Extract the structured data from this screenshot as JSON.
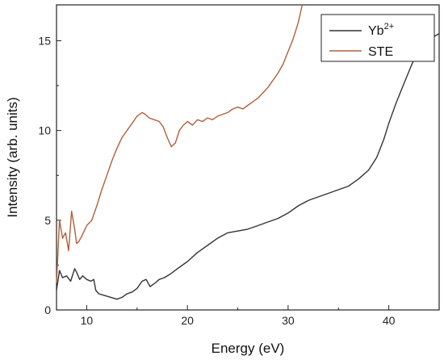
{
  "chart_data": {
    "type": "line",
    "xlabel": "Energy (eV)",
    "ylabel": "Intensity (arb. units)",
    "xlim": [
      7,
      45
    ],
    "ylim": [
      0,
      17
    ],
    "xticks": [
      10,
      20,
      30,
      40
    ],
    "yticks": [
      0,
      5,
      10,
      15
    ],
    "grid": false,
    "legend_position": "top-right",
    "series": [
      {
        "name": "Yb2+",
        "legend_base": "Yb",
        "legend_sup": "2+",
        "color": "#333333",
        "x": [
          7.0,
          7.3,
          7.6,
          8.0,
          8.4,
          8.8,
          9.0,
          9.3,
          9.6,
          10.0,
          10.4,
          10.7,
          10.9,
          11.2,
          11.8,
          12.4,
          13.0,
          13.5,
          14.0,
          14.5,
          15.0,
          15.5,
          15.9,
          16.3,
          16.8,
          17.2,
          17.7,
          18.3,
          19.0,
          20.0,
          21.0,
          22.0,
          23.0,
          24.0,
          25.0,
          26.0,
          27.0,
          28.0,
          29.0,
          30.0,
          31.0,
          32.0,
          33.0,
          34.0,
          35.0,
          36.0,
          37.0,
          38.0,
          38.8,
          39.5,
          40.0,
          40.7,
          41.5,
          42.3,
          43.0,
          43.7,
          44.4,
          45.0
        ],
        "y": [
          1.1,
          2.2,
          1.8,
          1.9,
          1.6,
          2.3,
          2.1,
          1.7,
          1.9,
          1.7,
          1.6,
          1.7,
          1.1,
          0.9,
          0.8,
          0.7,
          0.6,
          0.7,
          0.9,
          1.0,
          1.2,
          1.6,
          1.7,
          1.3,
          1.5,
          1.7,
          1.8,
          2.0,
          2.3,
          2.7,
          3.2,
          3.6,
          4.0,
          4.3,
          4.4,
          4.5,
          4.7,
          4.9,
          5.1,
          5.4,
          5.8,
          6.1,
          6.3,
          6.5,
          6.7,
          6.9,
          7.3,
          7.8,
          8.5,
          9.5,
          10.4,
          11.5,
          12.6,
          13.7,
          14.5,
          14.9,
          15.2,
          15.4
        ]
      },
      {
        "name": "STE",
        "legend_base": "STE",
        "legend_sup": "",
        "color": "#b0603a",
        "x": [
          7.0,
          7.3,
          7.6,
          7.9,
          8.2,
          8.5,
          8.8,
          9.0,
          9.2,
          9.5,
          10.0,
          10.5,
          11.0,
          11.5,
          12.0,
          12.5,
          13.0,
          13.5,
          14.0,
          14.5,
          15.0,
          15.5,
          15.8,
          16.2,
          16.7,
          17.2,
          17.6,
          18.0,
          18.4,
          18.8,
          19.2,
          19.6,
          20.0,
          20.5,
          21.0,
          21.5,
          22.0,
          22.5,
          23.0,
          23.5,
          24.0,
          24.5,
          25.0,
          25.5,
          26.0,
          26.5,
          27.0,
          27.5,
          28.0,
          28.5,
          29.0,
          29.5,
          30.0,
          30.5,
          31.0,
          31.4
        ],
        "y": [
          1.5,
          5.0,
          4.0,
          4.3,
          3.3,
          5.5,
          4.5,
          3.7,
          3.8,
          4.1,
          4.7,
          5.0,
          5.8,
          6.7,
          7.5,
          8.3,
          9.0,
          9.6,
          10.0,
          10.4,
          10.8,
          11.0,
          10.9,
          10.7,
          10.6,
          10.5,
          10.2,
          9.6,
          9.1,
          9.3,
          10.0,
          10.3,
          10.5,
          10.3,
          10.6,
          10.5,
          10.7,
          10.6,
          10.8,
          10.9,
          11.0,
          11.2,
          11.3,
          11.2,
          11.4,
          11.6,
          11.8,
          12.1,
          12.4,
          12.8,
          13.2,
          13.7,
          14.4,
          15.1,
          16.0,
          17.0
        ]
      }
    ]
  }
}
